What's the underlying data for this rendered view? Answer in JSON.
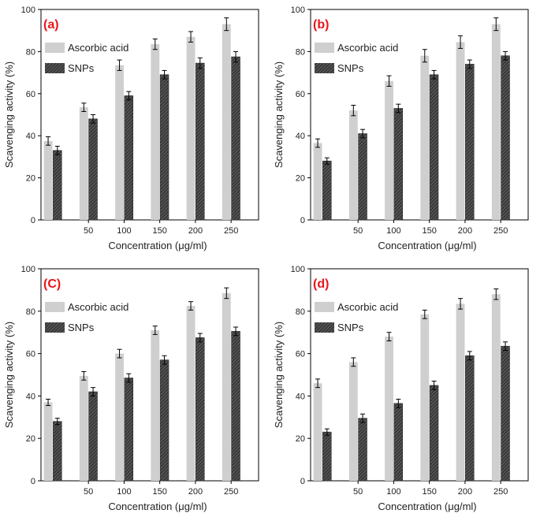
{
  "figure": {
    "background": "#ffffff"
  },
  "chart_data": [
    {
      "panel_label": "(a)",
      "panel_label_color": "#e8151b",
      "type": "bar",
      "categories": [
        "",
        "50",
        "100",
        "150",
        "200",
        "250"
      ],
      "series": [
        {
          "name": "Ascorbic acid",
          "color": "#cfcfcf",
          "pattern": "solid",
          "values": [
            37.5,
            53.5,
            73.5,
            83.5,
            87,
            93
          ],
          "errors": [
            2,
            2,
            2.5,
            2.5,
            2.5,
            3
          ]
        },
        {
          "name": "SNPs",
          "color": "#3a3a3a",
          "pattern": "hatched",
          "values": [
            33,
            48,
            59,
            69,
            74.5,
            77.5
          ],
          "errors": [
            2,
            2,
            2,
            2,
            2.5,
            2.5
          ]
        }
      ],
      "ylim": [
        0,
        100
      ],
      "yticks": [
        "0",
        "20",
        "40",
        "60",
        "80",
        "100"
      ],
      "xlabel": "Concentration (μg/ml)",
      "ylabel": "Scavenging activity (%)",
      "legend_position": "top-left"
    },
    {
      "panel_label": "(b)",
      "panel_label_color": "#e8151b",
      "type": "bar",
      "categories": [
        "",
        "50",
        "100",
        "150",
        "200",
        "250"
      ],
      "series": [
        {
          "name": "Ascorbic acid",
          "color": "#cfcfcf",
          "pattern": "solid",
          "values": [
            36.5,
            52,
            66,
            78,
            84.5,
            93
          ],
          "errors": [
            2,
            2.5,
            2.5,
            3,
            3,
            3
          ]
        },
        {
          "name": "SNPs",
          "color": "#3a3a3a",
          "pattern": "hatched",
          "values": [
            28,
            41,
            53,
            69,
            74,
            78
          ],
          "errors": [
            1.5,
            2,
            2,
            2,
            2,
            2
          ]
        }
      ],
      "ylim": [
        0,
        100
      ],
      "yticks": [
        "0",
        "20",
        "40",
        "60",
        "80",
        "100"
      ],
      "xlabel": "Concentration (μg/ml)",
      "ylabel": "Scavenging activity (%)",
      "legend_position": "top-left"
    },
    {
      "panel_label": "(C)",
      "panel_label_color": "#e8151b",
      "type": "bar",
      "categories": [
        "",
        "50",
        "100",
        "150",
        "200",
        "250"
      ],
      "series": [
        {
          "name": "Ascorbic acid",
          "color": "#cfcfcf",
          "pattern": "solid",
          "values": [
            37,
            49.5,
            60,
            71,
            82.5,
            88.5
          ],
          "errors": [
            1.5,
            2,
            2,
            2,
            2,
            2.5
          ]
        },
        {
          "name": "SNPs",
          "color": "#3a3a3a",
          "pattern": "hatched",
          "values": [
            28,
            42,
            48.5,
            57,
            67.5,
            70.5
          ],
          "errors": [
            1.5,
            2,
            2,
            2,
            2,
            2
          ]
        }
      ],
      "ylim": [
        0,
        100
      ],
      "yticks": [
        "0",
        "20",
        "40",
        "60",
        "80",
        "100"
      ],
      "xlabel": "Concentration (μg/ml)",
      "ylabel": "Scavenging activity (%)",
      "legend_position": "top-left"
    },
    {
      "panel_label": "(d)",
      "panel_label_color": "#e8151b",
      "type": "bar",
      "categories": [
        "",
        "50",
        "100",
        "150",
        "200",
        "250"
      ],
      "series": [
        {
          "name": "Ascorbic acid",
          "color": "#cfcfcf",
          "pattern": "solid",
          "values": [
            46,
            56,
            68,
            78.5,
            83.5,
            88
          ],
          "errors": [
            2,
            2,
            2,
            2,
            2.5,
            2.5
          ]
        },
        {
          "name": "SNPs",
          "color": "#3a3a3a",
          "pattern": "hatched",
          "values": [
            23,
            29.5,
            36.5,
            45,
            59,
            63.5
          ],
          "errors": [
            1.5,
            2,
            2,
            2,
            2,
            2
          ]
        }
      ],
      "ylim": [
        0,
        100
      ],
      "yticks": [
        "0",
        "20",
        "40",
        "60",
        "80",
        "100"
      ],
      "xlabel": "Concentration (μg/ml)",
      "ylabel": "Scavenging activity (%)",
      "legend_position": "top-left"
    }
  ]
}
